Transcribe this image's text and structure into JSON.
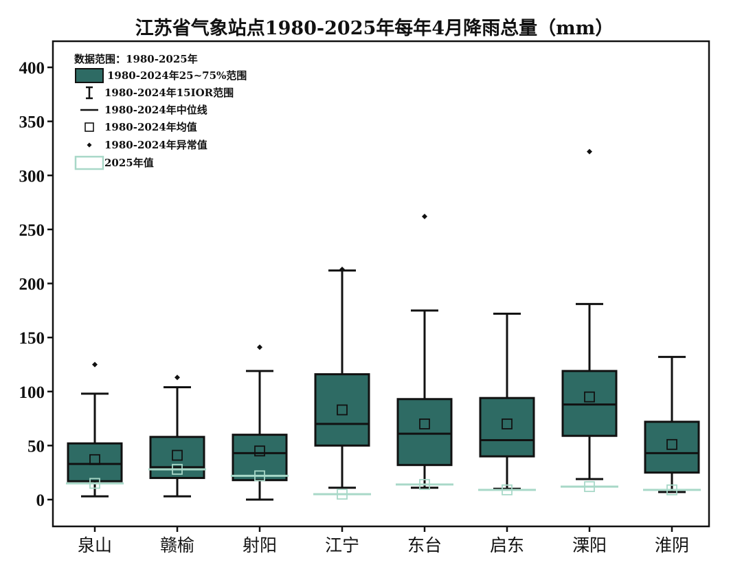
{
  "colors": {
    "box_fill": "#2e6b64",
    "box_stroke": "#111111",
    "v2025": "#a8d8c8",
    "marker": "#111111",
    "background": "#ffffff"
  },
  "chart_data": {
    "type": "box",
    "title": "江苏省气象站点1980-2025年每年4月降雨总量（mm）",
    "xlabel": "",
    "ylabel": "",
    "ylim": [
      -25,
      425
    ],
    "yticks": [
      0,
      50,
      100,
      150,
      200,
      250,
      300,
      350,
      400
    ],
    "categories": [
      "泉山",
      "赣榆",
      "射阳",
      "江宁",
      "东台",
      "启东",
      "溧阳",
      "淮阴"
    ],
    "series": [
      {
        "name": "泉山",
        "whisker_low": 3,
        "q1": 17,
        "median": 33,
        "q3": 52,
        "whisker_high": 98,
        "mean": 37,
        "outliers": [
          125
        ],
        "v2025": 15
      },
      {
        "name": "赣榆",
        "whisker_low": 3,
        "q1": 20,
        "median": 30,
        "q3": 58,
        "whisker_high": 104,
        "mean": 41,
        "outliers": [
          113
        ],
        "v2025": 28
      },
      {
        "name": "射阳",
        "whisker_low": 0,
        "q1": 18,
        "median": 43,
        "q3": 60,
        "whisker_high": 119,
        "mean": 45,
        "outliers": [
          141
        ],
        "v2025": 22
      },
      {
        "name": "江宁",
        "whisker_low": 11,
        "q1": 50,
        "median": 70,
        "q3": 116,
        "whisker_high": 212,
        "mean": 83,
        "outliers": [
          213
        ],
        "v2025": 5
      },
      {
        "name": "东台",
        "whisker_low": 11,
        "q1": 32,
        "median": 61,
        "q3": 93,
        "whisker_high": 175,
        "mean": 70,
        "outliers": [
          262
        ],
        "v2025": 14
      },
      {
        "name": "启东",
        "whisker_low": 10,
        "q1": 40,
        "median": 55,
        "q3": 94,
        "whisker_high": 172,
        "mean": 70,
        "outliers": [],
        "v2025": 9
      },
      {
        "name": "溧阳",
        "whisker_low": 19,
        "q1": 59,
        "median": 88,
        "q3": 119,
        "whisker_high": 181,
        "mean": 95,
        "outliers": [
          322
        ],
        "v2025": 12
      },
      {
        "name": "淮阴",
        "whisker_low": 7,
        "q1": 25,
        "median": 43,
        "q3": 72,
        "whisker_high": 132,
        "mean": 51,
        "outliers": [],
        "v2025": 9
      }
    ],
    "legend": {
      "position": "top-left",
      "header": "数据范围：1980-2025年",
      "items": [
        {
          "kind": "box",
          "label": "1980-2024年25~75%范围"
        },
        {
          "kind": "whisker",
          "label": "1980-2024年15IOR范围"
        },
        {
          "kind": "median",
          "label": "1980-2024年中位线"
        },
        {
          "kind": "mean",
          "label": "1980-2024年均值"
        },
        {
          "kind": "outlier",
          "label": "1980-2024年异常值"
        },
        {
          "kind": "v2025",
          "label": "2025年值"
        }
      ]
    },
    "grid": false
  }
}
